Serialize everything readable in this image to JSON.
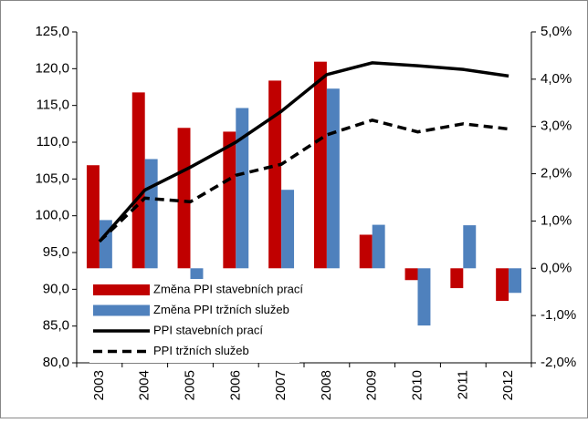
{
  "chart_data": {
    "type": "bar-line",
    "categories": [
      "2003",
      "2004",
      "2005",
      "2006",
      "2007",
      "2008",
      "2009",
      "2010",
      "2011",
      "2012"
    ],
    "series": [
      {
        "name": "Změna PPI stavebních prací",
        "kind": "bar",
        "axis": "y2",
        "color": "#c00000",
        "values": [
          2.18,
          3.72,
          2.97,
          2.89,
          3.97,
          4.37,
          0.71,
          -0.25,
          -0.42,
          -0.69
        ]
      },
      {
        "name": "Změna PPI tržních služeb",
        "kind": "bar",
        "axis": "y2",
        "color": "#4f81bd",
        "values": [
          1.02,
          2.31,
          -0.39,
          3.39,
          1.66,
          3.8,
          0.92,
          -1.21,
          0.91,
          -0.52
        ]
      },
      {
        "name": "PPI stavebních prací",
        "kind": "line",
        "axis": "y",
        "color": "#000000",
        "dash": false,
        "values": [
          96.5,
          103.5,
          106.6,
          110.0,
          114.2,
          119.2,
          120.8,
          120.4,
          119.9,
          119.0
        ]
      },
      {
        "name": "PPI tržních služeb",
        "kind": "line",
        "axis": "y",
        "color": "#000000",
        "dash": true,
        "values": [
          96.5,
          102.4,
          101.9,
          105.5,
          107.0,
          111.0,
          113.0,
          111.4,
          112.5,
          111.8
        ]
      }
    ],
    "ylim": [
      80,
      125
    ],
    "yticks": [
      {
        "value": 80,
        "label": "80,0"
      },
      {
        "value": 85,
        "label": "85,0"
      },
      {
        "value": 90,
        "label": "90,0"
      },
      {
        "value": 95,
        "label": "95,0"
      },
      {
        "value": 100,
        "label": "100,0"
      },
      {
        "value": 105,
        "label": "105,0"
      },
      {
        "value": 110,
        "label": "110,0"
      },
      {
        "value": 115,
        "label": "115,0"
      },
      {
        "value": 120,
        "label": "120,0"
      },
      {
        "value": 125,
        "label": "125,0"
      }
    ],
    "y2lim": [
      -2,
      5
    ],
    "y2ticks": [
      {
        "value": -2,
        "label": "-2,0%"
      },
      {
        "value": -1,
        "label": "-1,0%"
      },
      {
        "value": 0,
        "label": "0,0%"
      },
      {
        "value": 1,
        "label": "1,0%"
      },
      {
        "value": 2,
        "label": "2,0%"
      },
      {
        "value": 3,
        "label": "3,0%"
      },
      {
        "value": 4,
        "label": "4,0%"
      },
      {
        "value": 5,
        "label": "5,0%"
      }
    ],
    "legend": "lower-left"
  }
}
